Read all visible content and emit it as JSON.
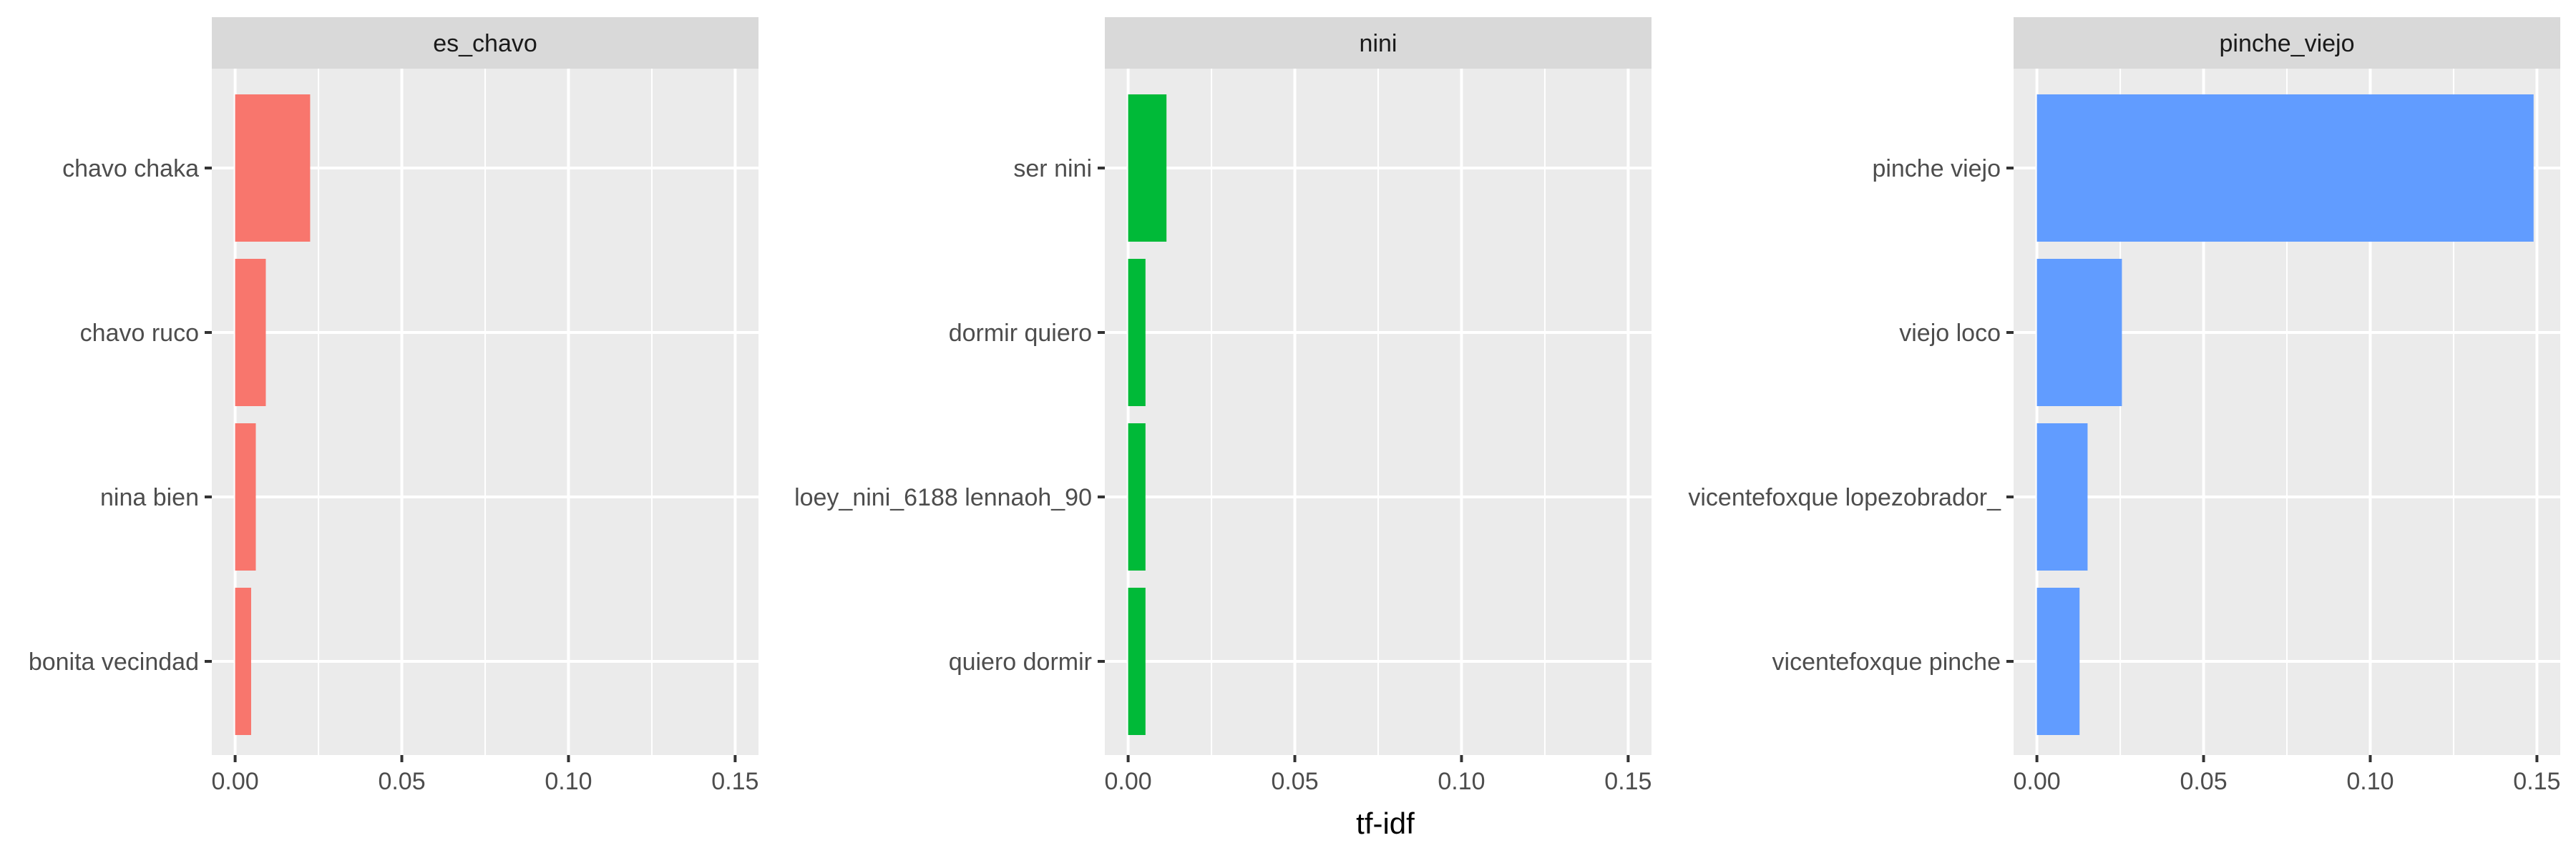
{
  "chart_data": {
    "type": "bar",
    "orientation": "horizontal",
    "xlabel": "tf-idf",
    "ylabel": "",
    "xlim": [
      -0.007,
      0.157
    ],
    "x_ticks": [
      {
        "value": 0.0,
        "label": "0.00"
      },
      {
        "value": 0.05,
        "label": "0.05"
      },
      {
        "value": 0.1,
        "label": "0.10"
      },
      {
        "value": 0.15,
        "label": "0.15"
      }
    ],
    "x_minor_gridlines": [
      0.025,
      0.075,
      0.125
    ],
    "grid": true,
    "legend": "none",
    "panels": [
      {
        "title": "es_chavo",
        "color": "#F8766D",
        "categories": [
          "chavo chaka",
          "chavo ruco",
          "nina bien",
          "bonita vecindad"
        ],
        "values": [
          0.0225,
          0.0092,
          0.0062,
          0.0048
        ]
      },
      {
        "title": "nini",
        "color": "#00BA38",
        "categories": [
          "ser nini",
          "dormir quiero",
          "loey_nini_6188 lennaoh_90",
          "quiero dormir"
        ],
        "values": [
          0.0115,
          0.0052,
          0.0052,
          0.0052
        ]
      },
      {
        "title": "pinche_viejo",
        "color": "#619CFF",
        "categories": [
          "pinche viejo",
          "viejo loco",
          "vicentefoxque lopezobrador_",
          "vicentefoxque pinche"
        ],
        "values": [
          0.149,
          0.0255,
          0.0152,
          0.0128
        ]
      }
    ]
  }
}
